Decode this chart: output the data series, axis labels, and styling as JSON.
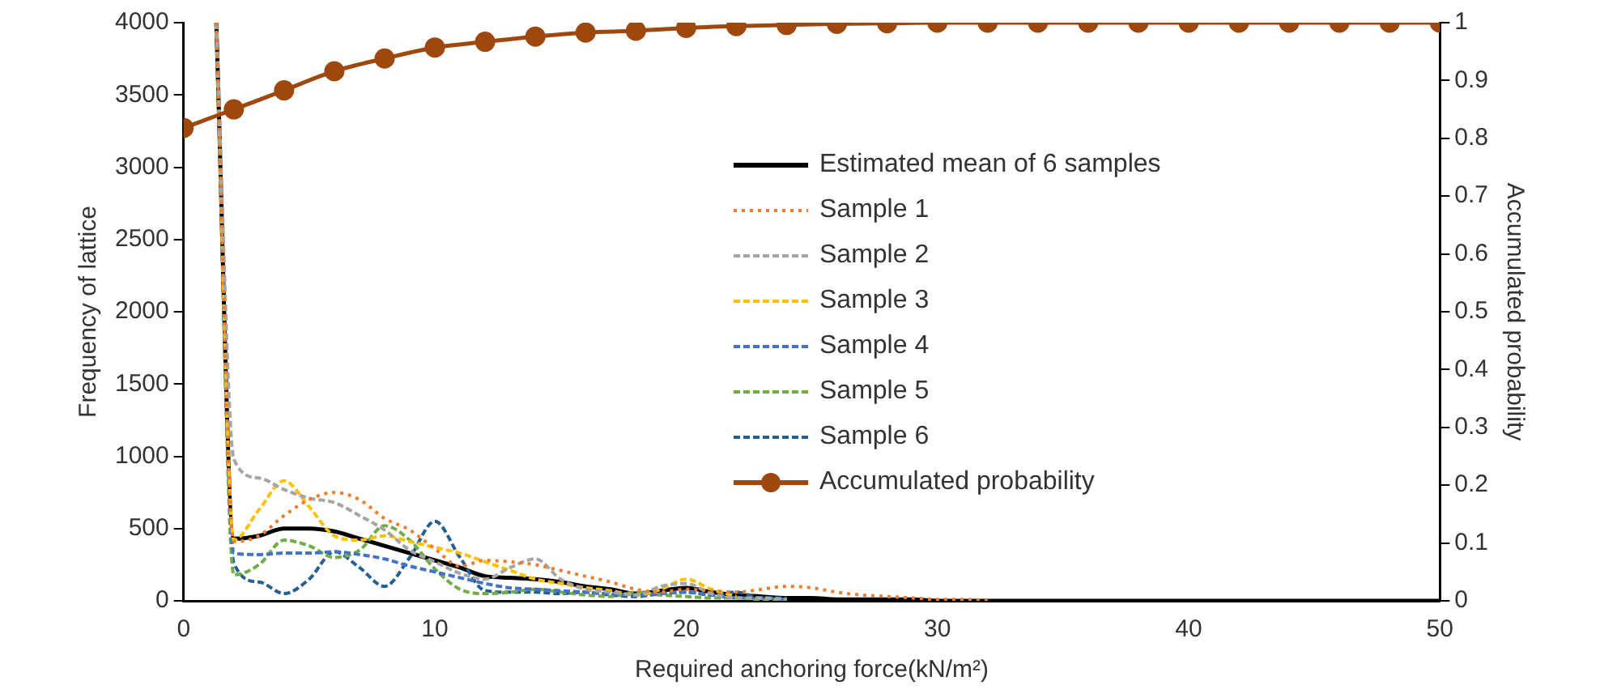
{
  "chart_data": {
    "type": "line",
    "xlabel": "Required anchoring force(kN/m²)",
    "ylabel": "Frequency of lattice",
    "y2label": "Accumulated probability",
    "xlim": [
      0,
      50
    ],
    "xticks": [
      0,
      10,
      20,
      30,
      40,
      50
    ],
    "ylim": [
      0,
      4000
    ],
    "yticks": [
      0,
      500,
      1000,
      1500,
      2000,
      2500,
      3000,
      3500,
      4000
    ],
    "y2lim": [
      0,
      1
    ],
    "y2ticks": [
      0,
      0.1,
      0.2,
      0.3,
      0.4,
      0.5,
      0.6,
      0.7,
      0.8,
      0.9,
      1
    ],
    "grid": false,
    "legend": "right",
    "series": [
      {
        "name": "Estimated mean of 6 samples",
        "color": "#000000",
        "line_style": "solid",
        "marker": "none",
        "x": [
          1.3,
          2,
          3,
          4,
          5,
          6,
          7,
          8,
          9,
          10,
          11,
          12,
          13,
          14,
          15,
          16,
          17,
          18,
          19,
          20,
          21,
          22,
          23,
          24,
          25,
          26,
          27,
          28,
          29,
          30,
          31,
          32,
          33,
          34,
          35,
          36,
          37,
          38,
          39,
          40,
          41,
          42,
          43,
          44,
          45,
          46,
          47,
          48,
          49,
          50
        ],
        "values": [
          4000,
          430,
          450,
          500,
          500,
          480,
          430,
          380,
          330,
          280,
          230,
          170,
          160,
          150,
          130,
          100,
          80,
          50,
          70,
          90,
          60,
          40,
          30,
          20,
          20,
          10,
          10,
          10,
          10,
          0,
          0,
          0,
          0,
          0,
          0,
          0,
          0,
          0,
          0,
          0,
          0,
          0,
          0,
          0,
          0,
          0,
          0,
          0,
          0,
          0
        ]
      },
      {
        "name": "Sample 1",
        "color": "#ed7d31",
        "line_style": "dotted",
        "marker": "none",
        "x": [
          1.3,
          2,
          3,
          4,
          5,
          6,
          7,
          8,
          9,
          10,
          11,
          12,
          13,
          14,
          15,
          16,
          17,
          18,
          19,
          20,
          21,
          22,
          23,
          24,
          25,
          26,
          27,
          28,
          29,
          30,
          31,
          32
        ],
        "values": [
          4000,
          410,
          450,
          590,
          700,
          750,
          700,
          570,
          490,
          360,
          240,
          280,
          270,
          250,
          210,
          170,
          130,
          80,
          60,
          80,
          70,
          60,
          80,
          100,
          90,
          60,
          40,
          30,
          20,
          10,
          10,
          0
        ]
      },
      {
        "name": "Sample 2",
        "color": "#a5a5a5",
        "line_style": "dashed",
        "marker": "none",
        "x": [
          1.3,
          2,
          3,
          4,
          5,
          6,
          7,
          8,
          9,
          10,
          11,
          12,
          13,
          14,
          15,
          16,
          17,
          18,
          19,
          20,
          21,
          22,
          23,
          24
        ],
        "values": [
          4000,
          980,
          850,
          770,
          710,
          680,
          590,
          490,
          350,
          270,
          190,
          150,
          230,
          290,
          150,
          80,
          60,
          40,
          100,
          120,
          50,
          20,
          20,
          10
        ]
      },
      {
        "name": "Sample 3",
        "color": "#ffc000",
        "line_style": "dashed",
        "marker": "none",
        "x": [
          1.3,
          2,
          3,
          4,
          5,
          6,
          7,
          8,
          9,
          10,
          11,
          12,
          13,
          14,
          15,
          16,
          17,
          18,
          19,
          20,
          21,
          22
        ],
        "values": [
          4000,
          420,
          630,
          830,
          650,
          450,
          420,
          450,
          410,
          370,
          330,
          270,
          210,
          150,
          120,
          90,
          70,
          40,
          80,
          150,
          80,
          30
        ]
      },
      {
        "name": "Sample 4",
        "color": "#4472c4",
        "line_style": "dashed",
        "marker": "none",
        "x": [
          1.3,
          2,
          3,
          4,
          5,
          6,
          7,
          8,
          9,
          10,
          11,
          12,
          13,
          14,
          15,
          16,
          17,
          18,
          19,
          20,
          21,
          22,
          23,
          24
        ],
        "values": [
          4000,
          330,
          320,
          330,
          330,
          340,
          320,
          290,
          240,
          200,
          160,
          120,
          90,
          80,
          70,
          60,
          50,
          40,
          50,
          60,
          40,
          20,
          20,
          10
        ]
      },
      {
        "name": "Sample 5",
        "color": "#70ad47",
        "line_style": "dashed",
        "marker": "none",
        "x": [
          1.3,
          2,
          3,
          4,
          5,
          6,
          7,
          8,
          9,
          10,
          11,
          12,
          13,
          14,
          15,
          16,
          17,
          18,
          19,
          20,
          21,
          22,
          23,
          24
        ],
        "values": [
          4000,
          180,
          250,
          420,
          380,
          300,
          350,
          520,
          420,
          220,
          80,
          50,
          60,
          80,
          60,
          40,
          30,
          60,
          40,
          30,
          20,
          20,
          10,
          10
        ]
      },
      {
        "name": "Sample 6",
        "color": "#255e91",
        "line_style": "dashed",
        "marker": "none",
        "x": [
          1.3,
          2,
          3,
          4,
          5,
          6,
          7,
          8,
          9,
          10,
          11,
          12,
          13,
          14,
          15,
          16,
          17,
          18,
          19,
          20,
          21,
          22,
          23,
          24
        ],
        "values": [
          4000,
          260,
          130,
          50,
          150,
          340,
          230,
          100,
          300,
          550,
          300,
          70,
          60,
          60,
          50,
          60,
          40,
          30,
          50,
          60,
          40,
          60,
          20,
          20
        ]
      },
      {
        "name": "Accumulated probability",
        "color": "#9e480e",
        "line_style": "solid",
        "marker": "circle",
        "axis": "y2",
        "x": [
          0,
          2,
          4,
          6,
          8,
          10,
          12,
          14,
          16,
          18,
          20,
          22,
          24,
          26,
          28,
          30,
          32,
          34,
          36,
          38,
          40,
          42,
          44,
          46,
          48,
          50
        ],
        "values": [
          0.818,
          0.85,
          0.883,
          0.916,
          0.938,
          0.957,
          0.967,
          0.976,
          0.983,
          0.986,
          0.991,
          0.994,
          0.996,
          0.998,
          0.999,
          1,
          1,
          1,
          1,
          1,
          1,
          1,
          1,
          1,
          1,
          1
        ]
      }
    ]
  }
}
